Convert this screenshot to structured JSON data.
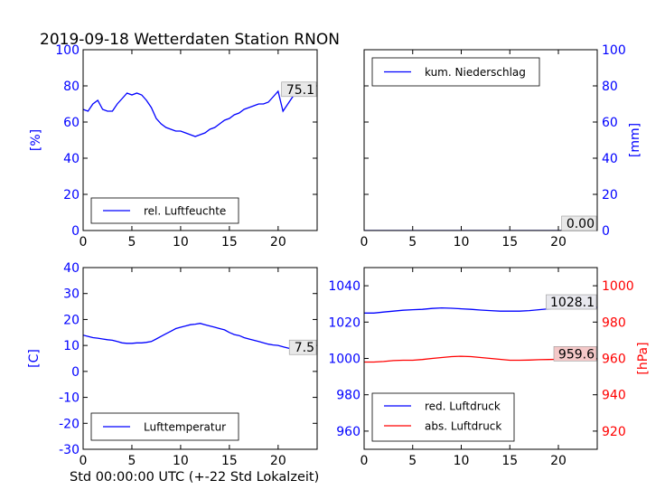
{
  "title": "2019-09-18 Wetterdaten Station RNON",
  "xlabel": "Std 00:00:00 UTC (+-22 Std Lokalzeit)",
  "colors": {
    "blue": "#0000ff",
    "red": "#ff0000",
    "black": "#000000"
  },
  "chart_data": [
    {
      "id": "humidity",
      "type": "line",
      "ylabel": "[%]",
      "xlim": [
        0,
        24
      ],
      "ylim": [
        0,
        100
      ],
      "xticks": [
        0,
        5,
        10,
        15,
        20
      ],
      "yticks": [
        0,
        20,
        40,
        60,
        80,
        100
      ],
      "series": [
        {
          "name": "rel. Luftfeuchte",
          "color": "#0000ff",
          "x": [
            0,
            0.5,
            1,
            1.5,
            2,
            2.5,
            3,
            3.5,
            4,
            4.5,
            5,
            5.5,
            6,
            6.5,
            7,
            7.5,
            8,
            8.5,
            9,
            9.5,
            10,
            10.5,
            11,
            11.5,
            12,
            12.5,
            13,
            13.5,
            14,
            14.5,
            15,
            15.5,
            16,
            16.5,
            17,
            17.5,
            18,
            18.5,
            19,
            19.5,
            20,
            20.5,
            21,
            21.5,
            22,
            22.5,
            23,
            23.5
          ],
          "y": [
            67,
            66,
            70,
            72,
            67,
            66,
            66,
            70,
            73,
            76,
            75,
            76,
            75,
            72,
            68,
            62,
            59,
            57,
            56,
            55,
            55,
            54,
            53,
            52,
            53,
            54,
            56,
            57,
            59,
            61,
            62,
            64,
            65,
            67,
            68,
            69,
            70,
            70,
            71,
            74,
            77,
            66,
            70,
            74,
            76,
            78,
            80,
            75.1
          ]
        }
      ],
      "annotation": "75.1",
      "legend": "lower-left"
    },
    {
      "id": "precip",
      "type": "line",
      "ylabel": "[mm]",
      "xlim": [
        0,
        24
      ],
      "ylim": [
        0,
        100
      ],
      "xticks": [
        0,
        5,
        10,
        15,
        20
      ],
      "yticks": [
        0,
        20,
        40,
        60,
        80,
        100
      ],
      "series": [
        {
          "name": "kum. Niederschlag",
          "color": "#0000ff",
          "x": [
            0,
            24
          ],
          "y": [
            0,
            0
          ]
        }
      ],
      "annotation": "0.00",
      "legend": "upper-left"
    },
    {
      "id": "temperature",
      "type": "line",
      "ylabel": "[C]",
      "xlim": [
        0,
        24
      ],
      "ylim": [
        -30,
        40
      ],
      "xticks": [
        0,
        5,
        10,
        15,
        20
      ],
      "yticks": [
        -30,
        -20,
        -10,
        0,
        10,
        20,
        30,
        40
      ],
      "series": [
        {
          "name": "Lufttemperatur",
          "color": "#0000ff",
          "x": [
            0,
            0.5,
            1,
            1.5,
            2,
            2.5,
            3,
            3.5,
            4,
            4.5,
            5,
            5.5,
            6,
            6.5,
            7,
            7.5,
            8,
            8.5,
            9,
            9.5,
            10,
            10.5,
            11,
            11.5,
            12,
            12.5,
            13,
            13.5,
            14,
            14.5,
            15,
            15.5,
            16,
            16.5,
            17,
            17.5,
            18,
            18.5,
            19,
            19.5,
            20,
            20.5,
            21,
            21.5,
            22,
            22.5,
            23,
            23.5
          ],
          "y": [
            14,
            13.5,
            13,
            12.8,
            12.5,
            12.2,
            12,
            11.5,
            11,
            10.8,
            10.8,
            11,
            11,
            11.2,
            11.5,
            12.5,
            13.5,
            14.5,
            15.5,
            16.5,
            17,
            17.5,
            18,
            18.2,
            18.5,
            18,
            17.5,
            17,
            16.5,
            16,
            15,
            14.2,
            13.8,
            13,
            12.5,
            12,
            11.5,
            11,
            10.5,
            10.2,
            10,
            9.5,
            9,
            8.5,
            8,
            7.8,
            7.5,
            7.5
          ]
        }
      ],
      "annotation": "7.5",
      "legend": "lower-left"
    },
    {
      "id": "pressure",
      "type": "line",
      "ylabel": "[hPa]",
      "xlim": [
        0,
        24
      ],
      "ylim": [
        950,
        1050
      ],
      "y2lim": [
        910,
        1010
      ],
      "xticks": [
        0,
        5,
        10,
        15,
        20
      ],
      "yticks": [
        960,
        980,
        1000,
        1020,
        1040
      ],
      "y2ticks": [
        920,
        940,
        960,
        980,
        1000
      ],
      "series": [
        {
          "name": "red. Luftdruck",
          "color": "#0000ff",
          "axis": "left",
          "x": [
            0,
            1,
            2,
            3,
            4,
            5,
            6,
            7,
            8,
            9,
            10,
            11,
            12,
            13,
            14,
            15,
            16,
            17,
            18,
            19,
            20,
            21,
            22,
            23,
            24
          ],
          "y": [
            1025,
            1025,
            1025.5,
            1026,
            1026.5,
            1026.8,
            1027,
            1027.5,
            1027.8,
            1027.6,
            1027.3,
            1027,
            1026.6,
            1026.3,
            1026,
            1026,
            1026,
            1026.3,
            1026.8,
            1027.3,
            1027.8,
            1028,
            1028.1,
            1028.1,
            1028.1
          ]
        },
        {
          "name": "abs. Luftdruck",
          "color": "#ff0000",
          "axis": "right",
          "x": [
            0,
            1,
            2,
            3,
            4,
            5,
            6,
            7,
            8,
            9,
            10,
            11,
            12,
            13,
            14,
            15,
            16,
            17,
            18,
            19,
            20,
            21,
            22,
            23,
            24
          ],
          "y": [
            958,
            958,
            958.3,
            958.8,
            959,
            959,
            959.4,
            960,
            960.5,
            961,
            961.2,
            961,
            960.5,
            960,
            959.5,
            959,
            959,
            959.1,
            959.3,
            959.4,
            959.5,
            959.5,
            959.6,
            959.6,
            959.6
          ]
        }
      ],
      "annotations": [
        "1028.1",
        "959.6"
      ],
      "legend": "lower-left"
    }
  ]
}
